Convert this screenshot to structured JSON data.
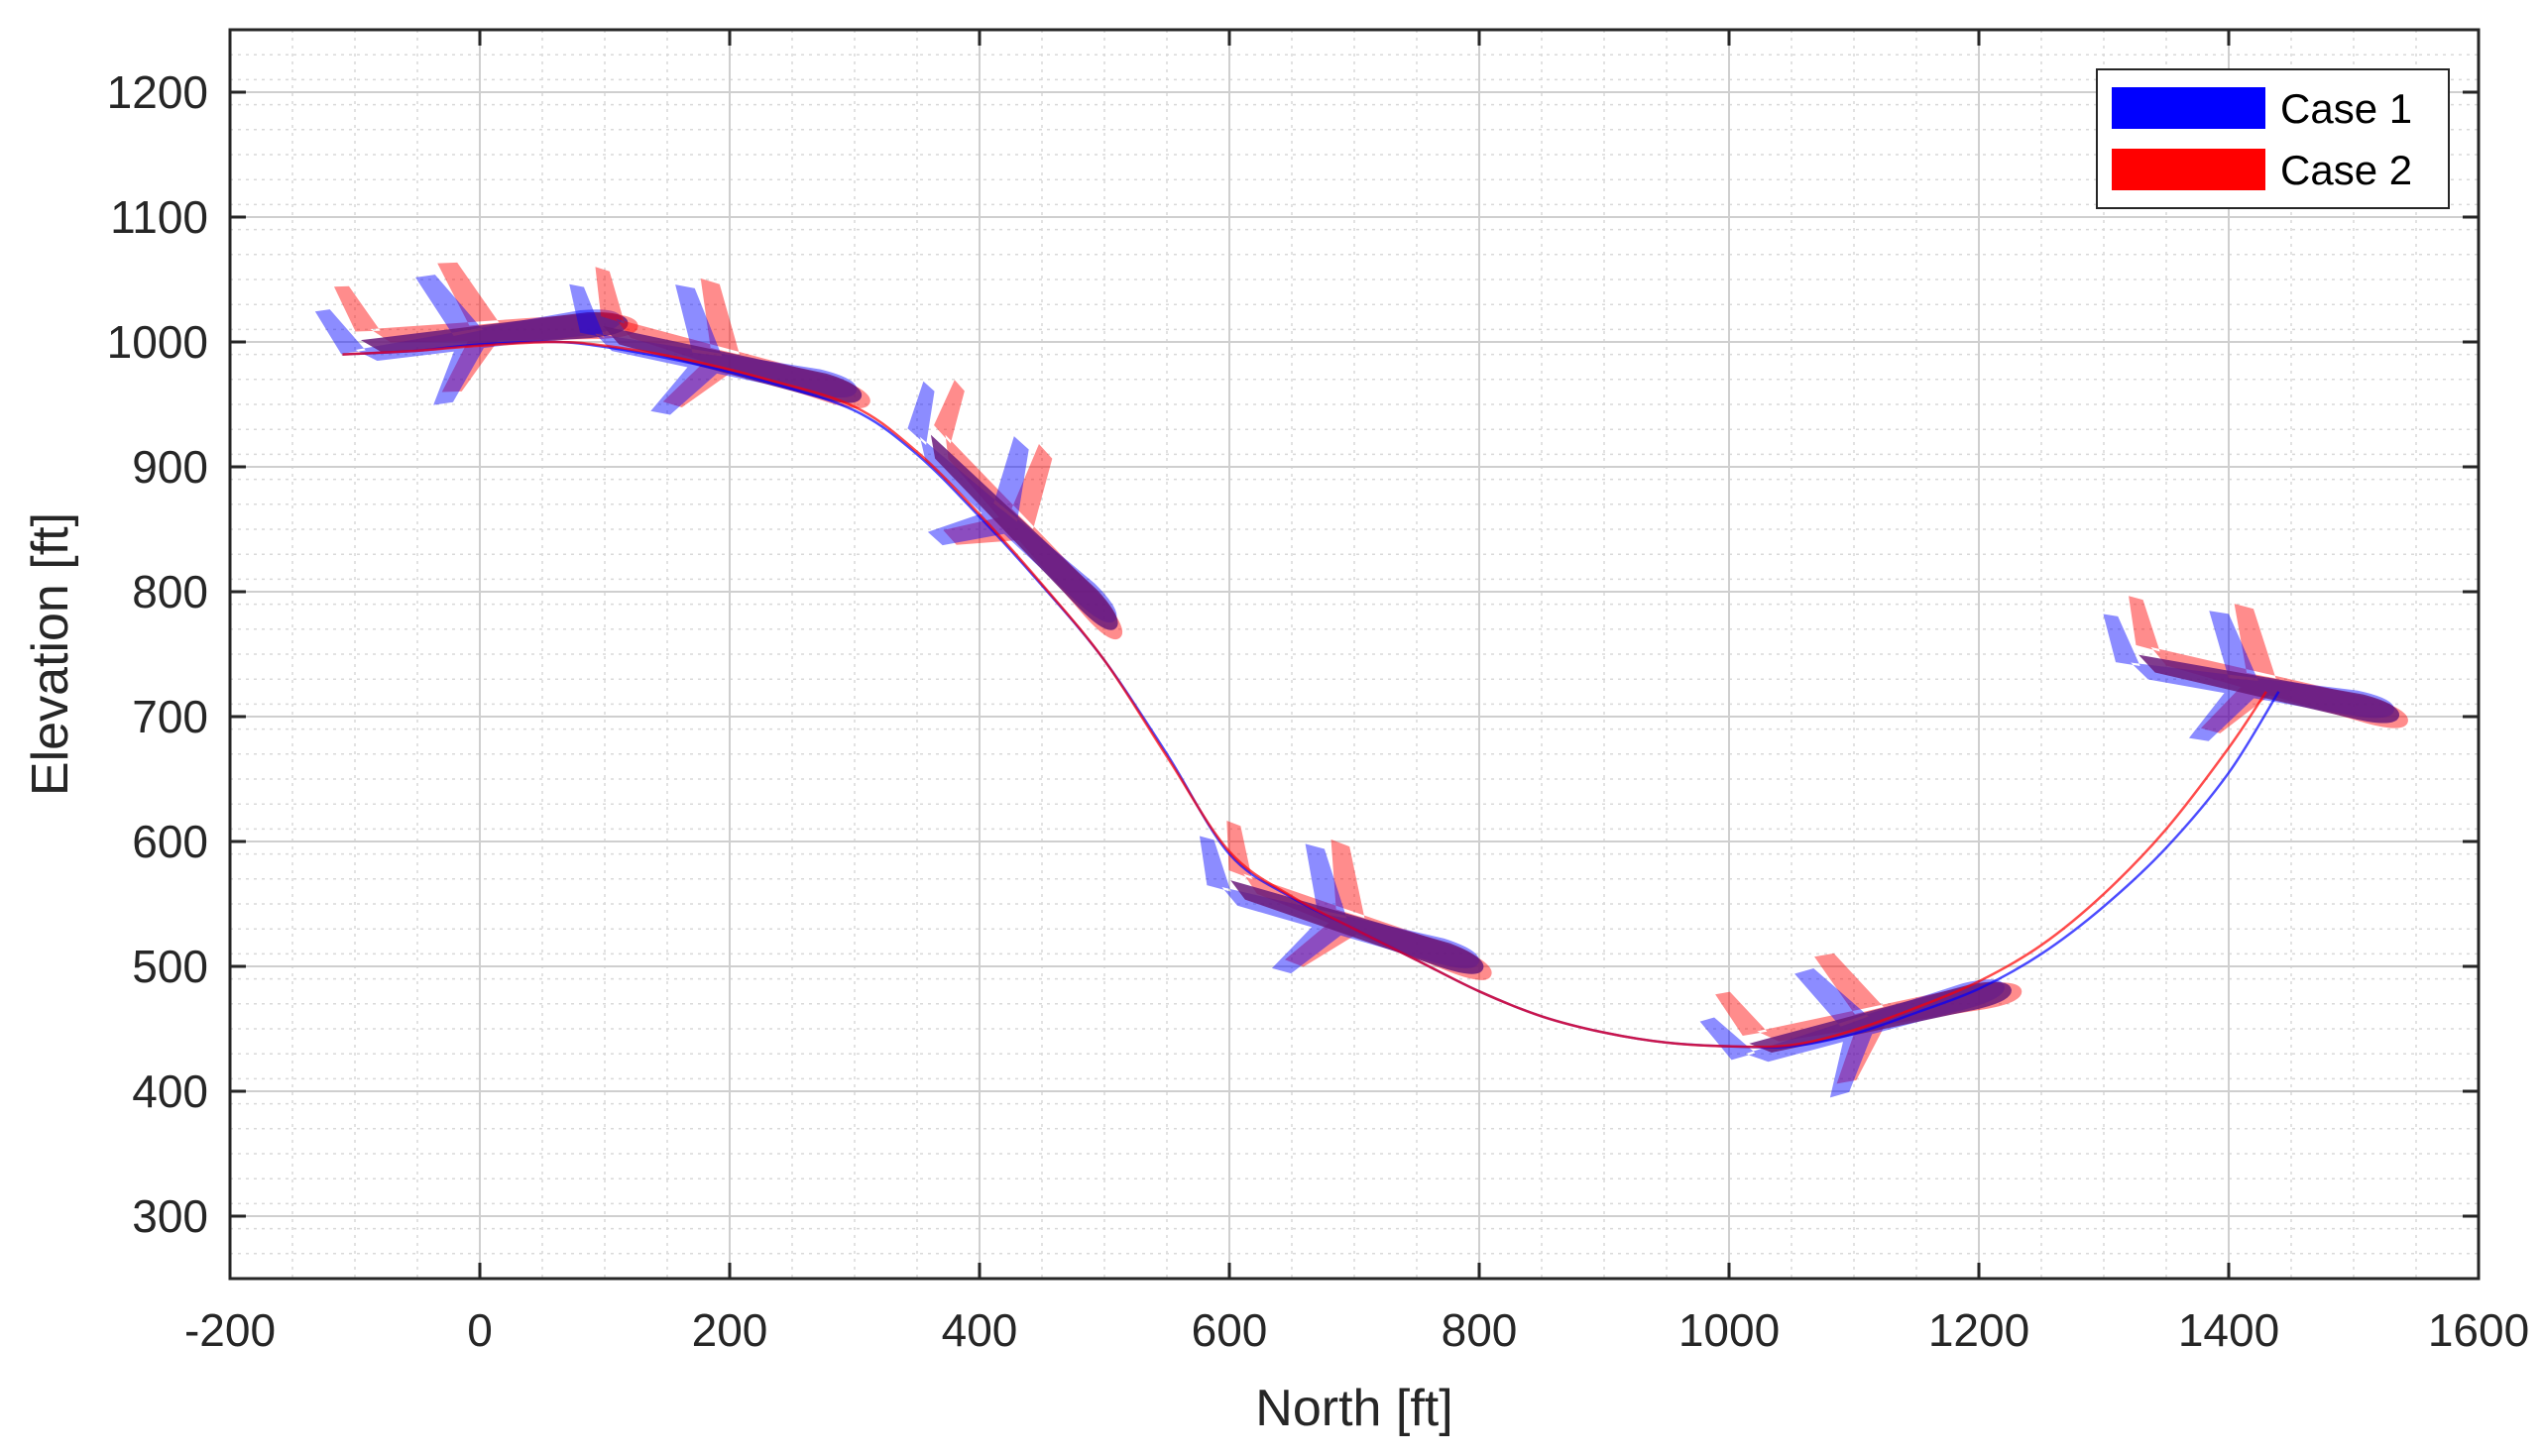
{
  "chart_data": {
    "type": "line",
    "xlabel": "North [ft]",
    "ylabel": "Elevation [ft]",
    "xlim": [
      -200,
      1600
    ],
    "ylim": [
      250,
      1250
    ],
    "xticks": [
      -200,
      0,
      200,
      400,
      600,
      800,
      1000,
      1200,
      1400,
      1600
    ],
    "yticks": [
      300,
      400,
      500,
      600,
      700,
      800,
      900,
      1000,
      1100,
      1200
    ],
    "xtick_labels": [
      "-200",
      "0",
      "200",
      "400",
      "600",
      "800",
      "1000",
      "1200",
      "1400",
      "1600"
    ],
    "ytick_labels": [
      "300",
      "400",
      "500",
      "600",
      "700",
      "800",
      "900",
      "1000",
      "1100",
      "1200"
    ],
    "grid": true,
    "minor_grid": true,
    "legend_position": "top-right",
    "colors": {
      "case1": "#0000ff",
      "case2": "#ff0000",
      "overlap": "#6a1a7a",
      "axes": "#262626",
      "grid": "#d9d9d9"
    },
    "series": [
      {
        "name": "Case 1",
        "color": "#0000ff",
        "x": [
          -110,
          -50,
          0,
          60,
          100,
          160,
          230,
          300,
          350,
          400,
          450,
          500,
          550,
          600,
          650,
          700,
          750,
          800,
          850,
          900,
          950,
          1000,
          1050,
          1100,
          1150,
          1200,
          1250,
          1300,
          1350,
          1400,
          1440
        ],
        "y": [
          990,
          993,
          998,
          1000,
          996,
          985,
          968,
          945,
          910,
          860,
          805,
          745,
          670,
          590,
          555,
          530,
          505,
          480,
          460,
          447,
          439,
          436,
          436,
          446,
          463,
          482,
          510,
          548,
          595,
          655,
          720
        ]
      },
      {
        "name": "Case 2",
        "color": "#ff0000",
        "x": [
          -110,
          -50,
          0,
          60,
          100,
          160,
          230,
          300,
          350,
          400,
          450,
          500,
          550,
          600,
          650,
          700,
          750,
          800,
          850,
          900,
          950,
          1000,
          1050,
          1100,
          1150,
          1200,
          1250,
          1300,
          1350,
          1400,
          1430
        ],
        "y": [
          990,
          993,
          997,
          1000,
          997,
          987,
          970,
          948,
          912,
          862,
          806,
          745,
          668,
          592,
          556,
          530,
          505,
          480,
          460,
          447,
          439,
          436,
          437,
          449,
          467,
          488,
          517,
          558,
          610,
          675,
          720
        ]
      }
    ],
    "aircraft": [
      {
        "x": 0,
        "y": 1005,
        "angle": -5
      },
      {
        "x": 190,
        "y": 985,
        "angle": 14
      },
      {
        "x": 425,
        "y": 855,
        "angle": 45
      },
      {
        "x": 690,
        "y": 535,
        "angle": 18
      },
      {
        "x": 1110,
        "y": 455,
        "angle": -13
      },
      {
        "x": 1420,
        "y": 725,
        "angle": 12
      }
    ]
  }
}
